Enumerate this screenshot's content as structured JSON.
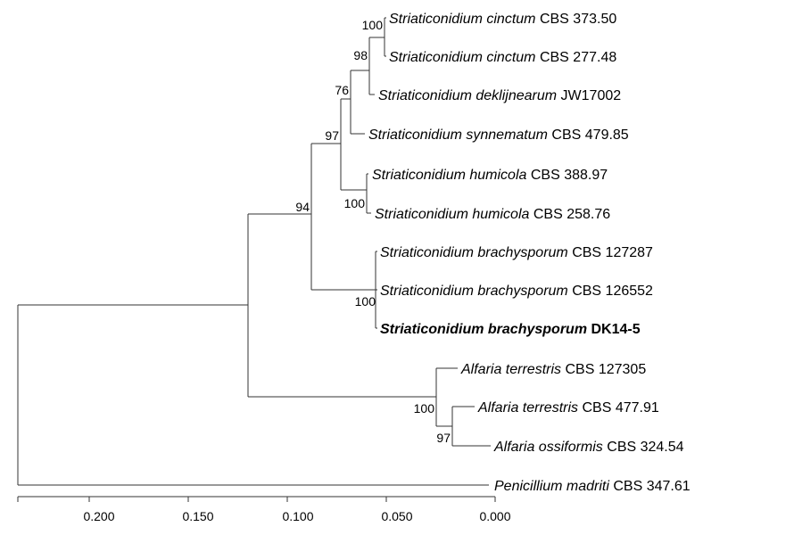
{
  "tree": {
    "taxa": [
      {
        "id": "t1",
        "name": "Striaticonidium cinctum",
        "strain": "CBS 373.50"
      },
      {
        "id": "t2",
        "name": "Striaticonidium cinctum",
        "strain": "CBS 277.48"
      },
      {
        "id": "t3",
        "name": "Striaticonidium deklijnearum",
        "strain": "JW17002"
      },
      {
        "id": "t4",
        "name": "Striaticonidium synnematum",
        "strain": "CBS 479.85"
      },
      {
        "id": "t5",
        "name": "Striaticonidium humicola",
        "strain": "CBS 388.97"
      },
      {
        "id": "t6",
        "name": "Striaticonidium humicola",
        "strain": "CBS 258.76"
      },
      {
        "id": "t7",
        "name": "Striaticonidium brachysporum",
        "strain": "CBS 127287"
      },
      {
        "id": "t8",
        "name": "Striaticonidium brachysporum",
        "strain": "CBS 126552"
      },
      {
        "id": "t9",
        "name": "Striaticonidium brachysporum",
        "strain": "DK14-5",
        "highlight": true
      },
      {
        "id": "t10",
        "name": "Alfaria terrestris",
        "strain": "CBS 127305"
      },
      {
        "id": "t11",
        "name": "Alfaria terrestris",
        "strain": "CBS 477.91"
      },
      {
        "id": "t12",
        "name": "Alfaria ossiformis",
        "strain": "CBS 324.54"
      },
      {
        "id": "t13",
        "name": "Penicillium madriti",
        "strain": "CBS 347.61"
      }
    ],
    "support_values": {
      "cinctum_clade": "100",
      "cinctum_deklijnearum": "98",
      "core_clade": "76",
      "striaticonidium_upper": "97",
      "humicola_clade": "100",
      "striaticonidium": "94",
      "brachysporum_clade": "100",
      "alfaria": "100",
      "alfaria_inner": "97"
    }
  },
  "scale_axis": {
    "ticks": [
      "0.200",
      "0.150",
      "0.100",
      "0.050",
      "0.000"
    ]
  }
}
